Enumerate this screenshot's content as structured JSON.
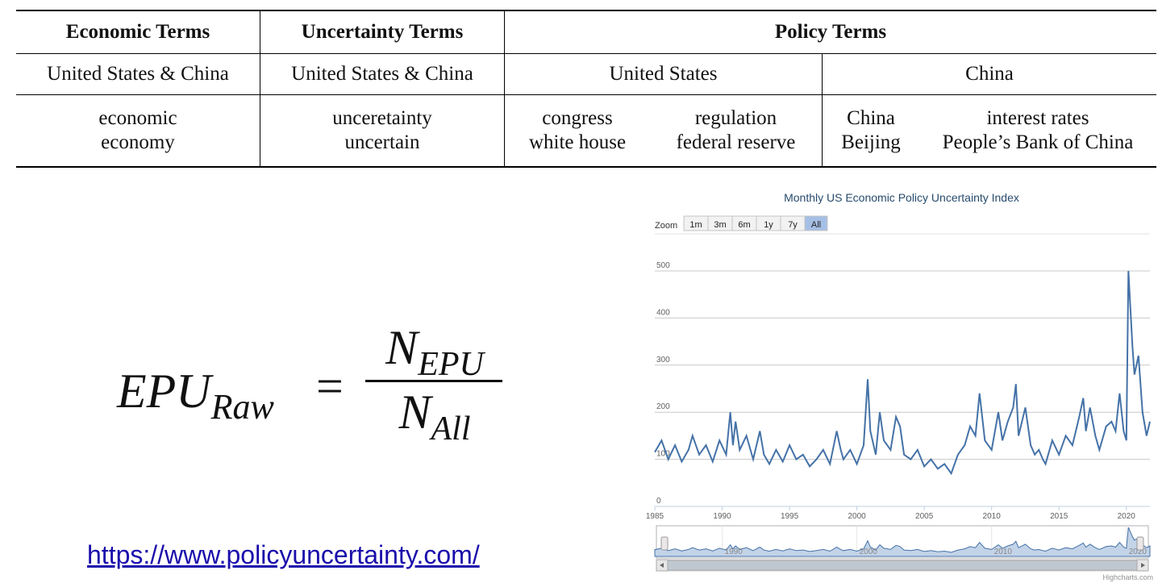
{
  "table": {
    "headers": [
      "Economic Terms",
      "Uncertainty Terms",
      "Policy Terms"
    ],
    "subheaders": [
      "United States & China",
      "United States & China",
      "United States",
      "China"
    ],
    "economic_terms": [
      "economic",
      "economy"
    ],
    "uncertainty_terms": [
      "unceretainty",
      "uncertain"
    ],
    "us_policy_col1": [
      "congress",
      "white house"
    ],
    "us_policy_col2": [
      "regulation",
      "federal reserve"
    ],
    "china_policy_col1": [
      "China",
      "Beijing"
    ],
    "china_policy_col2": [
      "interest rates",
      "People’s Bank of China"
    ]
  },
  "formula": {
    "lhs_base": "EPU",
    "lhs_sub": "Raw",
    "equals": "=",
    "num_base": "N",
    "num_sub": "EPU",
    "den_base": "N",
    "den_sub": "All"
  },
  "link_text": "https://www.policyuncertainty.com/",
  "chart_data": {
    "type": "line",
    "title": "Monthly US Economic Policy Uncertainty Index",
    "zoom_label": "Zoom",
    "zoom_buttons": [
      "1m",
      "3m",
      "6m",
      "1y",
      "7y",
      "All"
    ],
    "zoom_selected": "All",
    "credit": "Highcharts.com",
    "xlim": [
      1985,
      2021.75
    ],
    "ylim": [
      0,
      500
    ],
    "yticks": [
      0,
      100,
      200,
      300,
      400,
      500
    ],
    "xticks": [
      1985,
      1990,
      1995,
      2000,
      2005,
      2010,
      2015,
      2020
    ],
    "navigator_labels": [
      "1990",
      "2000",
      "2010",
      "2020"
    ],
    "navigator_years": [
      1990,
      2000,
      2010,
      2020
    ],
    "line_color": "#4572a7",
    "series": [
      {
        "x": [
          1985.0,
          1985.5,
          1986.0,
          1986.5,
          1987.0,
          1987.5,
          1987.8,
          1988.3,
          1988.8,
          1989.3,
          1989.8,
          1990.3,
          1990.6,
          1990.8,
          1991.0,
          1991.3,
          1991.8,
          1992.3,
          1992.8,
          1993.1,
          1993.5,
          1994.0,
          1994.5,
          1995.0,
          1995.5,
          1996.0,
          1996.5,
          1997.0,
          1997.5,
          1998.0,
          1998.5,
          1998.8,
          1999.0,
          1999.5,
          2000.0,
          2000.5,
          2000.8,
          2001.0,
          2001.4,
          2001.7,
          2002.0,
          2002.5,
          2002.9,
          2003.2,
          2003.5,
          2004.0,
          2004.5,
          2005.0,
          2005.5,
          2006.0,
          2006.5,
          2007.0,
          2007.5,
          2008.0,
          2008.4,
          2008.8,
          2009.1,
          2009.5,
          2010.0,
          2010.5,
          2010.8,
          2011.2,
          2011.6,
          2011.8,
          2012.0,
          2012.5,
          2012.9,
          2013.2,
          2013.5,
          2013.8,
          2014.0,
          2014.5,
          2015.0,
          2015.5,
          2016.0,
          2016.5,
          2016.8,
          2017.0,
          2017.3,
          2017.7,
          2018.0,
          2018.5,
          2018.9,
          2019.2,
          2019.5,
          2019.8,
          2020.0,
          2020.15,
          2020.3,
          2020.45,
          2020.6,
          2020.9,
          2021.2,
          2021.5,
          2021.75
        ],
        "y": [
          115,
          140,
          100,
          130,
          95,
          120,
          150,
          110,
          130,
          95,
          140,
          110,
          200,
          130,
          180,
          120,
          150,
          100,
          160,
          110,
          90,
          120,
          95,
          130,
          100,
          110,
          85,
          100,
          120,
          90,
          160,
          120,
          100,
          120,
          90,
          130,
          270,
          160,
          110,
          200,
          140,
          120,
          190,
          170,
          110,
          100,
          120,
          85,
          100,
          80,
          90,
          70,
          110,
          130,
          170,
          150,
          240,
          140,
          120,
          200,
          140,
          180,
          210,
          260,
          150,
          210,
          130,
          110,
          120,
          100,
          90,
          140,
          110,
          150,
          130,
          190,
          230,
          160,
          210,
          150,
          120,
          170,
          180,
          160,
          240,
          160,
          140,
          500,
          420,
          340,
          280,
          320,
          200,
          150,
          180
        ]
      }
    ]
  }
}
